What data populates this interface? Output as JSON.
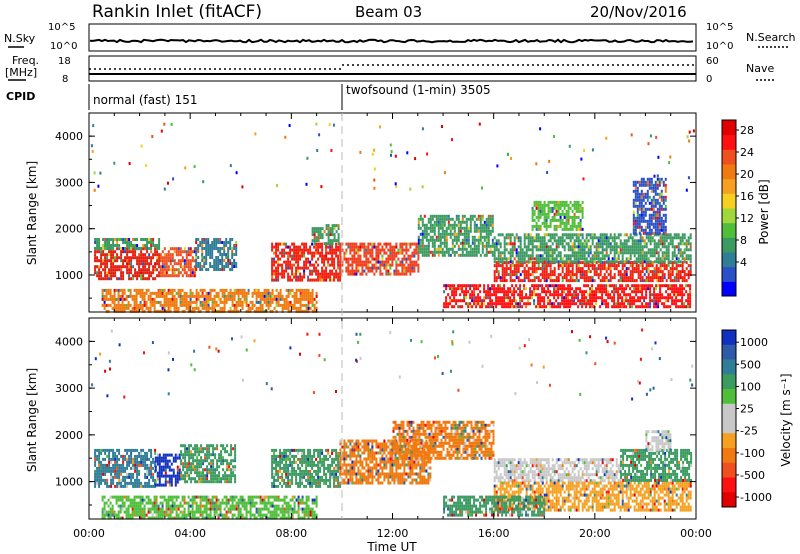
{
  "header": {
    "station": "Rankin Inlet (fitACF)",
    "beam": "Beam 03",
    "date": "20/Nov/2016"
  },
  "top_panels": {
    "nsky_label": "N.Sky",
    "nsky_ticks": [
      "10^5",
      "10^0"
    ],
    "nsearch_label": "N.Search",
    "nsearch_ticks": [
      "10^5",
      "10^0"
    ],
    "freq_label_1": "Freq.",
    "freq_label_2": "[MHz]",
    "freq_ticks": [
      "18",
      "8"
    ],
    "nave_label": "Nave",
    "nave_ticks": [
      "60",
      "0"
    ],
    "cpid_label": "CPID",
    "cpid_modes": [
      {
        "text": "normal (fast) 151"
      },
      {
        "text": "twofsound (1-min) 3505"
      }
    ]
  },
  "chart_data": [
    {
      "type": "heatmap",
      "name": "power",
      "ylabel": "Slant Range [km]",
      "yticks": [
        "1000",
        "2000",
        "3000",
        "4000"
      ],
      "ylim": [
        200,
        4500
      ],
      "xlim": [
        0,
        24
      ],
      "colorbar": {
        "label": "Power [dB]",
        "ticks": [
          "4",
          "8",
          "12",
          "16",
          "20",
          "24",
          "28"
        ],
        "colors": [
          "#0000ff",
          "#2a50c8",
          "#2f7d96",
          "#3a9a60",
          "#4fbf3a",
          "#a0d83a",
          "#f5d020",
          "#f5a020",
          "#f07a10",
          "#f05020",
          "#ff1010",
          "#e00000"
        ]
      },
      "regions": [
        {
          "t": [
            0.2,
            2.8
          ],
          "r": [
            900,
            1600
          ],
          "color": "#e02010"
        },
        {
          "t": [
            0.2,
            2.8
          ],
          "r": [
            1600,
            1800
          ],
          "color": "#3a9a60"
        },
        {
          "t": [
            2.8,
            4.2
          ],
          "r": [
            1000,
            1600
          ],
          "color": "#f05020"
        },
        {
          "t": [
            4.2,
            5.8
          ],
          "r": [
            1100,
            1800
          ],
          "color": "#2f7d96"
        },
        {
          "t": [
            7.2,
            9.9
          ],
          "r": [
            900,
            1700
          ],
          "color": "#f02010"
        },
        {
          "t": [
            8.8,
            9.9
          ],
          "r": [
            1700,
            2100
          ],
          "color": "#3a9a60"
        },
        {
          "t": [
            9.9,
            13.0
          ],
          "r": [
            1000,
            1700
          ],
          "color": "#f04020"
        },
        {
          "t": [
            13.0,
            16.0
          ],
          "r": [
            1400,
            2300
          ],
          "color": "#3a9a60"
        },
        {
          "t": [
            16.0,
            23.8
          ],
          "r": [
            900,
            1300
          ],
          "color": "#f02010"
        },
        {
          "t": [
            16.0,
            23.8
          ],
          "r": [
            1300,
            1900
          ],
          "color": "#3a9a60"
        },
        {
          "t": [
            14.0,
            23.8
          ],
          "r": [
            300,
            800
          ],
          "color": "#ff1010"
        },
        {
          "t": [
            0.5,
            9.0
          ],
          "r": [
            200,
            700
          ],
          "color": "#f07a10"
        },
        {
          "t": [
            21.5,
            22.8
          ],
          "r": [
            1900,
            3100
          ],
          "color": "#2a50c8"
        },
        {
          "t": [
            17.5,
            19.5
          ],
          "r": [
            2000,
            2600
          ],
          "color": "#4fbf3a"
        }
      ]
    },
    {
      "type": "heatmap",
      "name": "velocity",
      "ylabel": "Slant Range [km]",
      "yticks": [
        "1000",
        "2000",
        "3000",
        "4000"
      ],
      "xlabel": "Time UT",
      "xticks": [
        "00:00",
        "04:00",
        "08:00",
        "12:00",
        "16:00",
        "20:00",
        "00:00"
      ],
      "ylim": [
        200,
        4500
      ],
      "xlim": [
        0,
        24
      ],
      "colorbar": {
        "label": "Velocity [m s⁻¹]",
        "ticks": [
          "1000",
          "500",
          "100",
          "25",
          "-25",
          "-100",
          "-500",
          "-1000"
        ],
        "colors": [
          "#1030c0",
          "#2f5aa8",
          "#2f7d96",
          "#3a9a60",
          "#4fbf3a",
          "#c8c8c8",
          "#c8c8c8",
          "#f5a020",
          "#f07a10",
          "#f05020",
          "#ff1010",
          "#e00000"
        ]
      },
      "regions": [
        {
          "t": [
            0.2,
            2.6
          ],
          "r": [
            900,
            1700
          ],
          "color": "#2f7d96"
        },
        {
          "t": [
            2.6,
            3.6
          ],
          "r": [
            900,
            1600
          ],
          "color": "#1030c0"
        },
        {
          "t": [
            3.6,
            5.8
          ],
          "r": [
            1000,
            1800
          ],
          "color": "#3a9a60"
        },
        {
          "t": [
            7.2,
            9.9
          ],
          "r": [
            900,
            1700
          ],
          "color": "#3a9a60"
        },
        {
          "t": [
            9.9,
            13.5
          ],
          "r": [
            1000,
            1900
          ],
          "color": "#f07a10"
        },
        {
          "t": [
            12.0,
            16.0
          ],
          "r": [
            1500,
            2300
          ],
          "color": "#f07a10"
        },
        {
          "t": [
            16.0,
            21.0
          ],
          "r": [
            1000,
            1500
          ],
          "color": "#c8c8c8"
        },
        {
          "t": [
            16.0,
            23.8
          ],
          "r": [
            400,
            1000
          ],
          "color": "#f5a020"
        },
        {
          "t": [
            21.0,
            23.8
          ],
          "r": [
            1000,
            1700
          ],
          "color": "#3a9a60"
        },
        {
          "t": [
            22.0,
            23.0
          ],
          "r": [
            1700,
            2100
          ],
          "color": "#c8c8c8"
        },
        {
          "t": [
            0.5,
            9.0
          ],
          "r": [
            200,
            700
          ],
          "color": "#4fbf3a"
        },
        {
          "t": [
            14.0,
            18.0
          ],
          "r": [
            300,
            700
          ],
          "color": "#3a9a60"
        }
      ]
    }
  ]
}
